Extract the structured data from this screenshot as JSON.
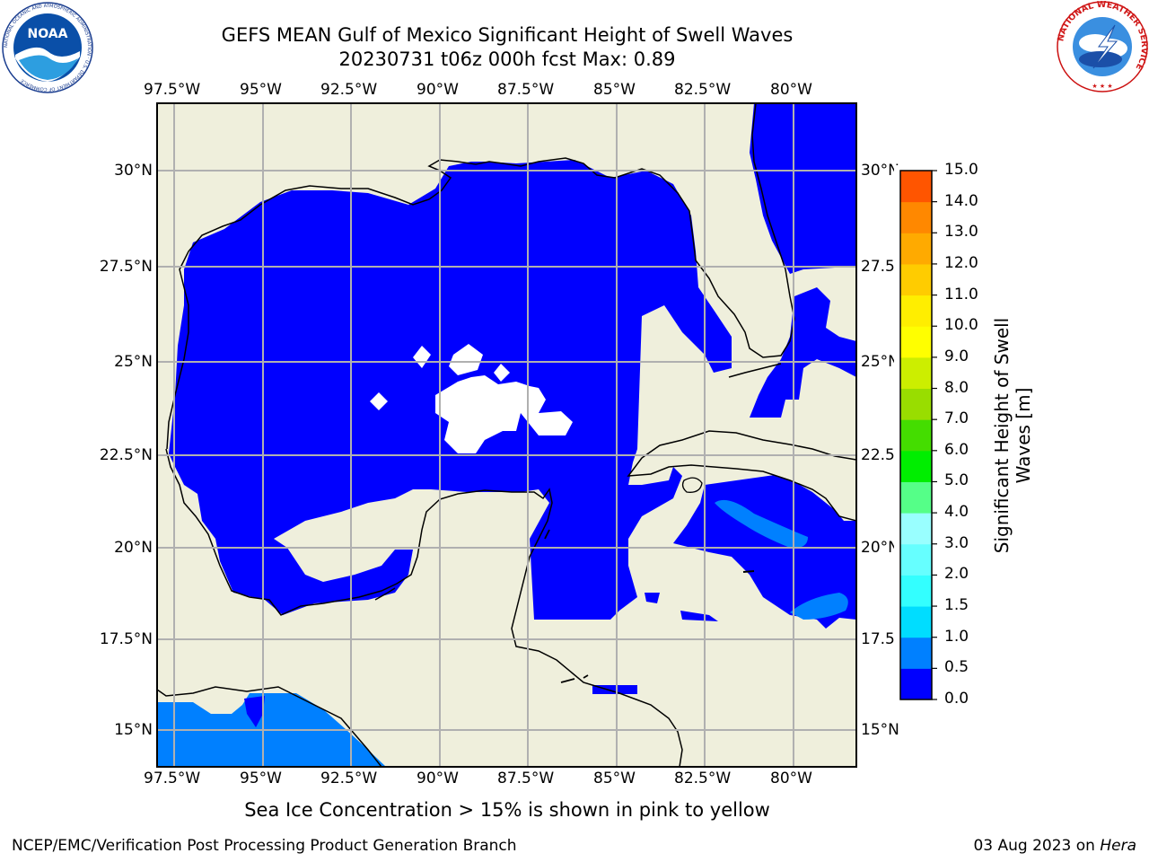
{
  "title": {
    "line1": "GEFS MEAN Gulf of Mexico Significant Height of Swell Waves",
    "line2": "20230731 t06z 000h fcst   Max: 0.89"
  },
  "map": {
    "lon_ticks": [
      "97.5°W",
      "95°W",
      "92.5°W",
      "90°W",
      "87.5°W",
      "85°W",
      "82.5°W",
      "80°W"
    ],
    "lat_ticks": [
      "30°N",
      "27.5°N",
      "25°N",
      "22.5°N",
      "20°N",
      "17.5°N",
      "15°N"
    ],
    "lon_range": [
      -98,
      -78.2
    ],
    "lat_range": [
      14,
      31.7
    ],
    "colors": {
      "land": "#efefdc",
      "sea_nodata": "#ffffff",
      "swell_0_0_5": "#0000ff",
      "swell_0_5_1": "#0080ff",
      "grid": "#b0b0b0"
    }
  },
  "colorbar": {
    "label_line1": "Significant Height of Swell",
    "label_line2": "Waves [m]",
    "ticks": [
      "0.0",
      "0.5",
      "1.0",
      "1.5",
      "2.0",
      "3.0",
      "4.0",
      "5.0",
      "6.0",
      "7.0",
      "8.0",
      "9.0",
      "10.0",
      "11.0",
      "12.0",
      "13.0",
      "14.0",
      "15.0"
    ],
    "colors": [
      "#0000ff",
      "#0080ff",
      "#00ddff",
      "#33ffff",
      "#66ffff",
      "#99ffff",
      "#55ff88",
      "#00ee00",
      "#44dd00",
      "#99dd00",
      "#ccee00",
      "#ffff00",
      "#ffee00",
      "#ffcc00",
      "#ffaa00",
      "#ff8800",
      "#ff5500",
      "#ff2200",
      "#ff0000"
    ]
  },
  "logos": {
    "left_text": "NOAA",
    "left_ring_text": "NATIONAL OCEANIC AND ATMOSPHERIC ADMINISTRATION · U.S. DEPARTMENT OF COMMERCE",
    "right_ring_text": "NATIONAL WEATHER SERVICE"
  },
  "footer": {
    "note": "Sea Ice Concentration > 15% is shown in pink to yellow",
    "left": "NCEP/EMC/Verification Post Processing Product Generation Branch",
    "right_date": "03 Aug 2023 on ",
    "right_host": "Hera"
  }
}
